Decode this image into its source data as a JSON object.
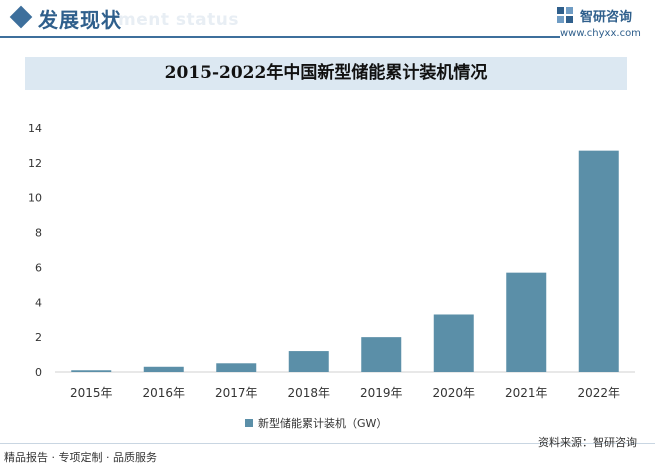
{
  "header": {
    "section_title": "发展现状",
    "section_subtitle": "ment status",
    "brand_name": "智研咨询",
    "brand_url": "www.chyxx.com"
  },
  "chart_data": {
    "type": "bar",
    "title": "2015-2022年中国新型储能累计装机情况",
    "categories": [
      "2015年",
      "2016年",
      "2017年",
      "2018年",
      "2019年",
      "2020年",
      "2021年",
      "2022年"
    ],
    "series": [
      {
        "name": "新型储能累计装机（GW）",
        "values": [
          0.1,
          0.3,
          0.5,
          1.2,
          2.0,
          3.3,
          5.7,
          12.7
        ],
        "color": "#5b8fa8"
      }
    ],
    "ylim": [
      0,
      14
    ],
    "yticks": [
      0,
      2,
      4,
      6,
      8,
      10,
      12,
      14
    ],
    "grid": false,
    "legend": "bottom"
  },
  "footer": {
    "left": "精品报告 · 专项定制 · 品质服务",
    "source": "资料来源：智研咨询"
  }
}
